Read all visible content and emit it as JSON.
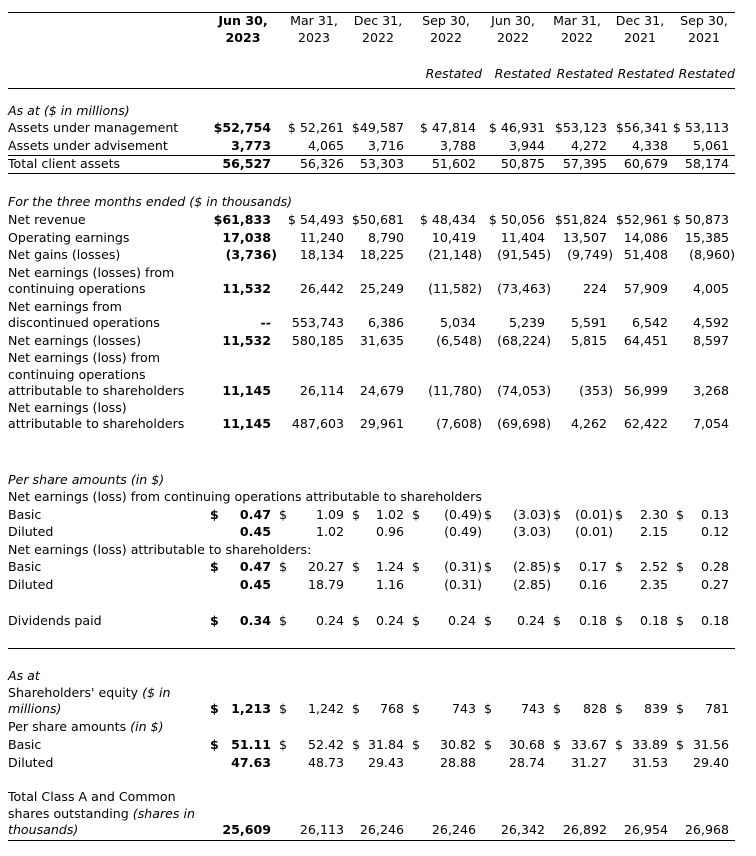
{
  "header": {
    "columns": [
      {
        "date": "Jun 30,",
        "year": "2023",
        "restated": ""
      },
      {
        "date": "Mar 31,",
        "year": "2023",
        "restated": ""
      },
      {
        "date": "Dec 31,",
        "year": "2022",
        "restated": ""
      },
      {
        "date": "Sep 30,",
        "year": "2022",
        "restated": "Restated"
      },
      {
        "date": "Jun 30,",
        "year": "2022",
        "restated": "Restated"
      },
      {
        "date": "Mar 31,",
        "year": "2022",
        "restated": "Restated"
      },
      {
        "date": "Dec 31,",
        "year": "2021",
        "restated": "Restated"
      },
      {
        "date": "Sep 30,",
        "year": "2021",
        "restated": "Restated"
      }
    ]
  },
  "rows": [
    {
      "label": [
        [
          "",
          "As at ($ in millions)"
        ]
      ]
    },
    {
      "label": [
        [
          "Assets under management",
          ""
        ]
      ],
      "values": [
        "$52,754",
        "$ 52,261",
        "$49,587",
        "$ 47,814",
        "$ 46,931",
        "$53,123",
        "$56,341",
        "$ 53,113"
      ]
    },
    {
      "label": [
        [
          "Assets under advisement",
          ""
        ]
      ],
      "values": [
        "3,773",
        "4,065",
        "3,716",
        "3,788",
        "3,944",
        "4,272",
        "4,338",
        "5,061"
      ]
    },
    {
      "label": [
        [
          "Total client assets",
          ""
        ]
      ],
      "values": [
        "56,527",
        "56,326",
        "53,303",
        "51,602",
        "50,875",
        "57,395",
        "60,679",
        "58,174"
      ]
    },
    {
      "label": [
        [
          "",
          "For the three months ended ($ in thousands)"
        ]
      ]
    },
    {
      "label": [
        [
          "Net revenue",
          ""
        ]
      ],
      "values": [
        "$61,833",
        "$ 54,493",
        "$50,681",
        "$ 48,434",
        "$ 50,056",
        "$51,824",
        "$52,961",
        "$ 50,873"
      ]
    },
    {
      "label": [
        [
          "Operating earnings",
          ""
        ]
      ],
      "values": [
        "17,038",
        "11,240",
        "8,790",
        "10,419",
        "11,404",
        "13,507",
        "14,086",
        "15,385"
      ]
    },
    {
      "label": [
        [
          "Net gains (losses)",
          ""
        ]
      ],
      "values": [
        "(3,736)",
        "18,134",
        "18,225",
        "(21,148)",
        "(91,545)",
        "(9,749)",
        "51,408",
        "(8,960)"
      ]
    },
    {
      "label": [
        [
          "Net earnings (losses) from",
          ""
        ],
        [
          "continuing operations",
          ""
        ]
      ],
      "values": [
        "11,532",
        "26,442",
        "25,249",
        "(11,582)",
        "(73,463)",
        "224",
        "57,909",
        "4,005"
      ]
    },
    {
      "label": [
        [
          "Net earnings from",
          ""
        ],
        [
          "discontinued operations",
          ""
        ]
      ],
      "values": [
        "--",
        "553,743",
        "6,386",
        "5,034",
        "5,239",
        "5,591",
        "6,542",
        "4,592"
      ]
    },
    {
      "label": [
        [
          "Net earnings (losses)",
          ""
        ]
      ],
      "values": [
        "11,532",
        "580,185",
        "31,635",
        "(6,548)",
        "(68,224)",
        "5,815",
        "64,451",
        "8,597"
      ]
    },
    {
      "label": [
        [
          "Net earnings (loss) from",
          ""
        ],
        [
          "continuing operations",
          ""
        ],
        [
          "attributable to shareholders",
          ""
        ]
      ],
      "values": [
        "11,145",
        "26,114",
        "24,679",
        "(11,780)",
        "(74,053)",
        "(353)",
        "56,999",
        "3,268"
      ]
    },
    {
      "label": [
        [
          "Net earnings (loss)",
          ""
        ],
        [
          "attributable to shareholders",
          ""
        ]
      ],
      "values": [
        "11,145",
        "487,603",
        "29,961",
        "(7,608)",
        "(69,698)",
        "4,262",
        "62,422",
        "7,054"
      ]
    },
    {
      "label": [
        [
          "",
          "Per share amounts (in $)"
        ]
      ]
    },
    {
      "label": [
        [
          "Net earnings (loss) from continuing operations attributable to shareholders",
          ""
        ]
      ]
    },
    {
      "label": [
        [
          "Basic",
          ""
        ]
      ],
      "dollar": "$",
      "values": [
        "0.47",
        "1.09",
        "1.02",
        "(0.49)",
        "(3.03)",
        "(0.01)",
        "2.30",
        "0.13"
      ]
    },
    {
      "label": [
        [
          "Diluted",
          ""
        ]
      ],
      "values": [
        "0.45",
        "1.02",
        "0.96",
        "(0.49)",
        "(3.03)",
        "(0.01)",
        "2.15",
        "0.12"
      ]
    },
    {
      "label": [
        [
          "Net earnings (loss) attributable to shareholders:",
          ""
        ]
      ]
    },
    {
      "label": [
        [
          "Basic",
          ""
        ]
      ],
      "dollar": "$",
      "values": [
        "0.47",
        "20.27",
        "1.24",
        "(0.31)",
        "(2.85)",
        "0.17",
        "2.52",
        "0.28"
      ]
    },
    {
      "label": [
        [
          "Diluted",
          ""
        ]
      ],
      "values": [
        "0.45",
        "18.79",
        "1.16",
        "(0.31)",
        "(2.85)",
        "0.16",
        "2.35",
        "0.27"
      ]
    },
    {
      "label": [
        [
          "Dividends paid",
          ""
        ]
      ],
      "dollar": "$",
      "values": [
        "0.34",
        "0.24",
        "0.24",
        "0.24",
        "0.24",
        "0.18",
        "0.18",
        "0.18"
      ]
    },
    {
      "label": [
        [
          "",
          "As at"
        ]
      ]
    },
    {
      "label": [
        [
          "Shareholders' equity ",
          "($ in"
        ],
        [
          "",
          "millions)"
        ]
      ],
      "dollar": "$",
      "values": [
        "1,213",
        "1,242",
        "768",
        "743",
        "743",
        "828",
        "839",
        "781"
      ]
    },
    {
      "label": [
        [
          "Per share amounts ",
          "(in $)"
        ]
      ]
    },
    {
      "label": [
        [
          "Basic",
          ""
        ]
      ],
      "dollar": "$",
      "values": [
        "51.11",
        "52.42",
        "31.84",
        "30.82",
        "30.68",
        "33.67",
        "33.89",
        "31.56"
      ]
    },
    {
      "label": [
        [
          "Diluted",
          ""
        ]
      ],
      "values": [
        "47.63",
        "48.73",
        "29.43",
        "28.88",
        "28.74",
        "31.27",
        "31.53",
        "29.40"
      ]
    },
    {
      "label": [
        [
          "Total Class A and Common",
          ""
        ],
        [
          "shares outstanding ",
          "(shares in"
        ],
        [
          "",
          "thousands)"
        ]
      ],
      "values": [
        "25,609",
        "26,113",
        "26,246",
        "26,246",
        "26,342",
        "26,892",
        "26,954",
        "26,968"
      ]
    }
  ]
}
